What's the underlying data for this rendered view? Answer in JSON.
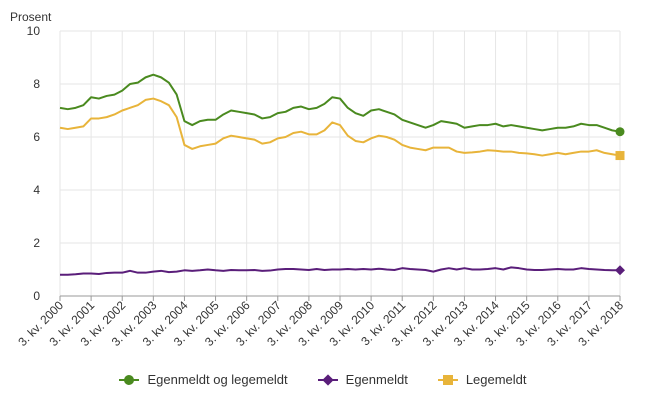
{
  "chart_data": {
    "type": "line",
    "ylabel": "Prosent",
    "ylim": [
      0,
      10
    ],
    "y_ticks": [
      0,
      2,
      4,
      6,
      8,
      10
    ],
    "grid": true,
    "legend_position": "bottom",
    "x_tick_labels": [
      "3. kv. 2000",
      "3. kv. 2001",
      "3. kv. 2002",
      "3. kv. 2003",
      "3. kv. 2004",
      "3. kv. 2005",
      "3. kv. 2006",
      "3. kv. 2007",
      "3. kv. 2008",
      "3. kv. 2009",
      "3. kv. 2010",
      "3. kv. 2011",
      "3. kv. 2012",
      "3. kv. 2013",
      "3. kv. 2014",
      "3. kv. 2015",
      "3. kv. 2016",
      "3. kv. 2017",
      "3. kv. 2018"
    ],
    "x_tick_positions": [
      0,
      4,
      8,
      12,
      16,
      20,
      24,
      28,
      32,
      36,
      40,
      44,
      48,
      52,
      56,
      60,
      64,
      68,
      72
    ],
    "series": [
      {
        "name": "Egenmeldt og legemeldt",
        "color": "#4a8a1f",
        "marker": "circle",
        "values": [
          7.1,
          7.05,
          7.1,
          7.2,
          7.5,
          7.45,
          7.55,
          7.6,
          7.75,
          8.0,
          8.05,
          8.25,
          8.35,
          8.25,
          8.05,
          7.6,
          6.6,
          6.45,
          6.6,
          6.65,
          6.65,
          6.85,
          7.0,
          6.95,
          6.9,
          6.85,
          6.7,
          6.75,
          6.9,
          6.95,
          7.1,
          7.15,
          7.05,
          7.1,
          7.25,
          7.5,
          7.45,
          7.1,
          6.9,
          6.8,
          7.0,
          7.05,
          6.95,
          6.85,
          6.65,
          6.55,
          6.45,
          6.35,
          6.45,
          6.6,
          6.55,
          6.5,
          6.35,
          6.4,
          6.45,
          6.45,
          6.5,
          6.4,
          6.45,
          6.4,
          6.35,
          6.3,
          6.25,
          6.3,
          6.35,
          6.35,
          6.4,
          6.5,
          6.45,
          6.45,
          6.35,
          6.25,
          6.2
        ]
      },
      {
        "name": "Egenmeldt",
        "color": "#5a1e7a",
        "marker": "diamond",
        "values": [
          0.8,
          0.8,
          0.82,
          0.85,
          0.85,
          0.83,
          0.87,
          0.88,
          0.88,
          0.95,
          0.88,
          0.88,
          0.92,
          0.95,
          0.9,
          0.92,
          0.97,
          0.95,
          0.97,
          1.0,
          0.97,
          0.95,
          0.98,
          0.97,
          0.97,
          0.98,
          0.95,
          0.96,
          1.0,
          1.02,
          1.02,
          1.0,
          0.98,
          1.02,
          0.98,
          1.0,
          1.0,
          1.02,
          1.0,
          1.02,
          1.0,
          1.03,
          1.0,
          0.98,
          1.05,
          1.02,
          1.0,
          0.98,
          0.92,
          1.0,
          1.05,
          1.0,
          1.05,
          1.0,
          1.0,
          1.02,
          1.05,
          1.0,
          1.08,
          1.05,
          1.0,
          0.98,
          0.98,
          1.0,
          1.02,
          1.0,
          1.0,
          1.05,
          1.02,
          1.0,
          0.98,
          0.97,
          0.97
        ]
      },
      {
        "name": "Legemeldt",
        "color": "#e8b43a",
        "marker": "square",
        "values": [
          6.35,
          6.3,
          6.35,
          6.4,
          6.7,
          6.7,
          6.75,
          6.85,
          7.0,
          7.1,
          7.2,
          7.4,
          7.45,
          7.35,
          7.2,
          6.75,
          5.7,
          5.55,
          5.65,
          5.7,
          5.75,
          5.95,
          6.05,
          6.0,
          5.95,
          5.9,
          5.75,
          5.8,
          5.95,
          6.0,
          6.15,
          6.2,
          6.1,
          6.1,
          6.25,
          6.55,
          6.45,
          6.05,
          5.85,
          5.8,
          5.95,
          6.05,
          6.0,
          5.9,
          5.7,
          5.6,
          5.55,
          5.5,
          5.6,
          5.6,
          5.6,
          5.45,
          5.4,
          5.42,
          5.45,
          5.5,
          5.48,
          5.45,
          5.45,
          5.4,
          5.38,
          5.35,
          5.3,
          5.35,
          5.4,
          5.35,
          5.4,
          5.45,
          5.45,
          5.5,
          5.4,
          5.35,
          5.3
        ]
      }
    ]
  }
}
